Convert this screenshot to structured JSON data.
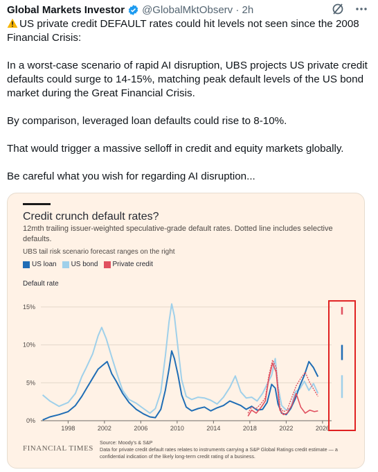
{
  "tweet": {
    "author_name": "Global Markets Investor",
    "handle_time": "@GlobalMktObserv · 2h",
    "line1": "US private credit DEFAULT rates could hit levels not seen since the 2008 Financial Crisis:",
    "para2": "In a worst-case scenario of rapid AI disruption, UBS projects US private credit defaults could surge to 14-15%, matching peak default levels of the US bond market during the Great Financial Crisis.",
    "para3": "By comparison, leveraged loan defaults could rise to 8-10%.",
    "para4": "That would trigger a massive selloff in credit and equity markets globally.",
    "para5": "Be careful what you wish for regarding AI disruption..."
  },
  "icons": {
    "verified": "verified-badge-icon",
    "grok": "grok-icon",
    "more": "more-dots-icon",
    "warning": "warning-icon"
  },
  "colors": {
    "us_loan": "#1f6db5",
    "us_bond": "#9fd0ea",
    "private_credit": "#e0505f",
    "highlight_box": "#e02020",
    "card_bg": "#fff2e6"
  },
  "card": {
    "title": "Credit crunch default rates?",
    "subtitle": "12mth trailing issuer-weighted speculative-grade default rates. Dotted line includes selective defaults.",
    "note": "UBS tail risk scenario forecast ranges on the right",
    "legend": [
      "US loan",
      "US bond",
      "Private credit"
    ],
    "y_caption": "Default rate",
    "brand": "FINANCIAL TIMES",
    "source_line1": "Source: Moody's & S&P",
    "source_line2": "Data for private credit default rates relates to instruments carrying a S&P Global Ratings credit estimate — a confidential indication of the likely long-term credit rating of a business."
  },
  "chart_data": {
    "type": "line",
    "title": "Credit crunch default rates?",
    "ylabel": "Default rate",
    "ylim": [
      0,
      17
    ],
    "yticks": [
      "0%",
      "5%",
      "10%",
      "15%"
    ],
    "xticks": [
      "1998",
      "2002",
      "2006",
      "2010",
      "2014",
      "2018",
      "2022",
      "2026"
    ],
    "grid": true,
    "legend_placement": "top-left",
    "series": [
      {
        "name": "US loan",
        "x": [
          1995.2,
          1996,
          1997,
          1998,
          1998.8,
          1999.5,
          2000,
          2000.7,
          2001.3,
          2001.8,
          2002.3,
          2002.8,
          2003.3,
          2004,
          2004.7,
          2005.5,
          2006.3,
          2007,
          2007.6,
          2008.2,
          2008.7,
          2009.1,
          2009.4,
          2009.7,
          2010.1,
          2010.5,
          2011,
          2011.6,
          2012.3,
          2013,
          2013.7,
          2014.4,
          2015.1,
          2015.8,
          2016.4,
          2017,
          2017.6,
          2018.2,
          2018.8,
          2019.4,
          2019.9,
          2020.4,
          2020.8,
          2021.1,
          2021.5,
          2022,
          2022.5,
          2023,
          2023.5,
          2024,
          2024.5,
          2025,
          2025.5
        ],
        "y": [
          0.1,
          0.5,
          0.8,
          1.2,
          2.0,
          3.2,
          4.2,
          5.6,
          6.8,
          7.3,
          7.8,
          6.2,
          5.2,
          3.6,
          2.4,
          1.5,
          0.9,
          0.5,
          0.4,
          1.5,
          4.0,
          6.8,
          9.2,
          8.2,
          6.0,
          3.4,
          1.8,
          1.3,
          1.6,
          1.8,
          1.3,
          1.7,
          2.0,
          2.6,
          2.3,
          2.0,
          1.5,
          1.9,
          1.4,
          1.5,
          2.4,
          4.8,
          4.3,
          2.2,
          1.0,
          0.8,
          1.6,
          2.9,
          4.6,
          6.0,
          7.8,
          7.0,
          5.8
        ]
      },
      {
        "name": "US bond",
        "x": [
          1995.2,
          1996,
          1997,
          1998,
          1998.8,
          1999.5,
          2000,
          2000.7,
          2001.3,
          2001.7,
          2002.2,
          2002.8,
          2003.4,
          2004,
          2004.7,
          2005.5,
          2006.3,
          2007,
          2007.6,
          2008.2,
          2008.7,
          2009.1,
          2009.4,
          2009.7,
          2010.1,
          2010.5,
          2011,
          2011.6,
          2012.3,
          2013,
          2013.7,
          2014.4,
          2015.1,
          2015.8,
          2016.4,
          2017,
          2017.6,
          2018.2,
          2018.8,
          2019.4,
          2019.9,
          2020.4,
          2020.8,
          2021.1,
          2021.5,
          2022,
          2022.5,
          2023,
          2023.5,
          2024,
          2024.5,
          2025,
          2025.5
        ],
        "y": [
          3.4,
          2.6,
          1.9,
          2.4,
          3.6,
          5.8,
          7.0,
          8.8,
          11.2,
          12.3,
          10.8,
          8.4,
          6.1,
          4.0,
          2.8,
          2.3,
          1.6,
          1.0,
          1.6,
          3.8,
          8.5,
          13.0,
          15.4,
          13.8,
          9.5,
          5.4,
          3.2,
          2.8,
          3.1,
          3.0,
          2.7,
          2.2,
          3.1,
          4.4,
          5.9,
          3.8,
          3.0,
          3.1,
          2.6,
          3.6,
          4.8,
          6.0,
          8.2,
          4.5,
          2.0,
          1.4,
          1.6,
          3.8,
          4.2,
          5.2,
          4.0,
          4.9,
          3.6
        ]
      },
      {
        "name": "Private credit",
        "x": [
          2017.8,
          2018.2,
          2018.7,
          2019.2,
          2019.7,
          2020.1,
          2020.5,
          2020.9,
          2021.3,
          2021.7,
          2022.1,
          2022.6,
          2023.1,
          2023.6,
          2024.1,
          2024.6,
          2025.1,
          2025.5
        ],
        "y": [
          0.6,
          1.4,
          1.0,
          1.7,
          2.6,
          5.6,
          7.6,
          6.4,
          1.4,
          0.8,
          1.0,
          2.0,
          3.6,
          1.8,
          1.0,
          1.4,
          1.2,
          1.3
        ]
      },
      {
        "name": "Private credit incl. selective defaults",
        "x": [
          2017.8,
          2018.2,
          2018.7,
          2019.2,
          2019.7,
          2020.1,
          2020.5,
          2020.9,
          2021.3,
          2021.7,
          2022.1,
          2022.6,
          2023.1,
          2023.6,
          2024.1,
          2024.6,
          2025.1,
          2025.5
        ],
        "y": [
          1.0,
          1.8,
          1.6,
          2.2,
          3.0,
          6.0,
          8.0,
          7.0,
          1.8,
          1.2,
          1.4,
          3.0,
          4.6,
          5.6,
          6.4,
          5.0,
          4.0,
          3.2
        ]
      }
    ],
    "forecast_ranges": [
      {
        "name": "Private credit",
        "low": 14,
        "high": 15
      },
      {
        "name": "US loan",
        "low": 8,
        "high": 10
      },
      {
        "name": "US bond",
        "low": 3,
        "high": 6
      }
    ]
  }
}
